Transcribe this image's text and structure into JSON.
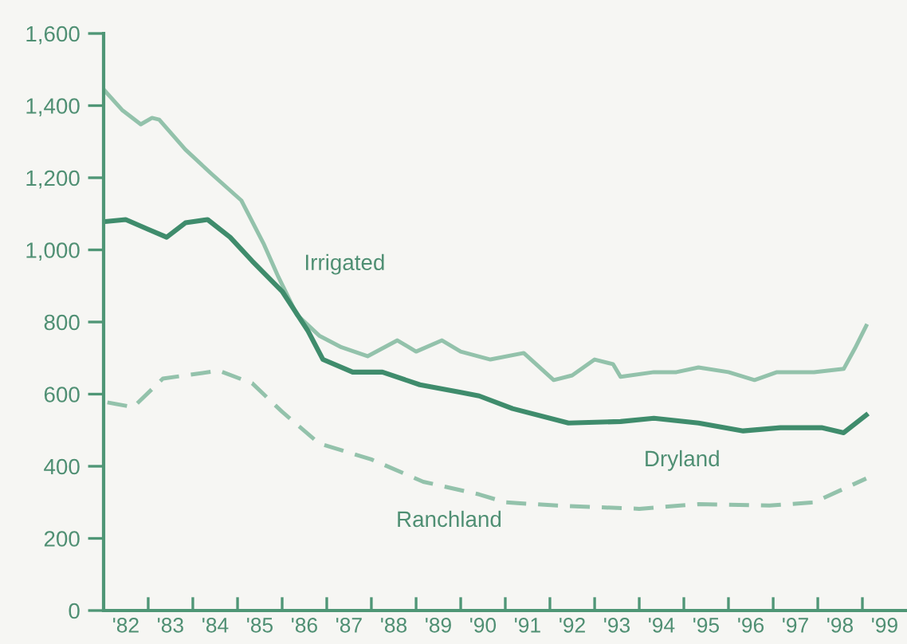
{
  "chart_data": {
    "type": "line",
    "xlim": [
      "1982-01-01",
      "2000-01-01"
    ],
    "ylim": [
      0,
      1600
    ],
    "yticks": [
      0,
      200,
      400,
      600,
      800,
      {
        "value": 1000,
        "label": "1,000"
      },
      {
        "value": 1200,
        "label": "1,200"
      },
      {
        "value": 1400,
        "label": "1,400"
      },
      {
        "value": 1600,
        "label": "1,600"
      }
    ],
    "xticks": [
      {
        "value": "1982-07-02",
        "label": "'82"
      },
      {
        "value": "1983-01-01",
        "label": null
      },
      {
        "value": "1983-07-02",
        "label": "'83"
      },
      {
        "value": "1984-01-01",
        "label": null
      },
      {
        "value": "1984-07-02",
        "label": "'84"
      },
      {
        "value": "1985-01-01",
        "label": null
      },
      {
        "value": "1985-07-02",
        "label": "'85"
      },
      {
        "value": "1986-01-01",
        "label": null
      },
      {
        "value": "1986-07-02",
        "label": "'86"
      },
      {
        "value": "1987-01-01",
        "label": null
      },
      {
        "value": "1987-07-02",
        "label": "'87"
      },
      {
        "value": "1988-01-01",
        "label": null
      },
      {
        "value": "1988-07-02",
        "label": "'88"
      },
      {
        "value": "1989-01-01",
        "label": null
      },
      {
        "value": "1989-07-02",
        "label": "'89"
      },
      {
        "value": "1990-01-01",
        "label": null
      },
      {
        "value": "1990-07-02",
        "label": "'90"
      },
      {
        "value": "1991-01-01",
        "label": null
      },
      {
        "value": "1991-07-02",
        "label": "'91"
      },
      {
        "value": "1992-01-01",
        "label": null
      },
      {
        "value": "1992-07-02",
        "label": "'92"
      },
      {
        "value": "1993-01-01",
        "label": null
      },
      {
        "value": "1993-07-02",
        "label": "'93"
      },
      {
        "value": "1994-01-01",
        "label": null
      },
      {
        "value": "1994-07-02",
        "label": "'94"
      },
      {
        "value": "1995-01-01",
        "label": null
      },
      {
        "value": "1995-07-02",
        "label": "'95"
      },
      {
        "value": "1996-01-01",
        "label": null
      },
      {
        "value": "1996-07-02",
        "label": "'96"
      },
      {
        "value": "1997-01-01",
        "label": null
      },
      {
        "value": "1997-07-02",
        "label": "'97"
      },
      {
        "value": "1998-01-01",
        "label": null
      },
      {
        "value": "1998-07-02",
        "label": "'98"
      },
      {
        "value": "1999-01-01",
        "label": null
      },
      {
        "value": "1999-07-02",
        "label": "'99"
      }
    ],
    "grid": false,
    "legend": false,
    "marker": "none",
    "series": [
      {
        "name": "Irrigated",
        "color": "#93c2ab",
        "line_style": "solid",
        "x": [
          "1982-01",
          "1982-06",
          "1982-11",
          "1983-02",
          "1983-04",
          "1983-11",
          "1984-06",
          "1985-02",
          "1985-08",
          "1985-12",
          "1986-05",
          "1986-11",
          "1987-05",
          "1987-12",
          "1988-08",
          "1989-01",
          "1989-08",
          "1990-01",
          "1990-09",
          "1991-06",
          "1992-02",
          "1992-07",
          "1993-01",
          "1993-06",
          "1993-08",
          "1994-05",
          "1994-11",
          "1995-05",
          "1996-01",
          "1996-08",
          "1997-02",
          "1997-12",
          "1998-08",
          "1998-11",
          "1999-02"
        ],
        "values": [
          1445,
          1388,
          1348,
          1366,
          1361,
          1278,
          1211,
          1137,
          1018,
          925,
          820,
          762,
          730,
          705,
          749,
          718,
          749,
          718,
          696,
          714,
          639,
          652,
          696,
          683,
          648,
          661,
          661,
          674,
          661,
          639,
          661,
          661,
          670,
          727,
          789
        ]
      },
      {
        "name": "Dryland",
        "color": "#3f8c6c",
        "line_style": "solid",
        "x": [
          "1982-02",
          "1982-07",
          "1983-01",
          "1983-06",
          "1983-11",
          "1984-05",
          "1984-11",
          "1985-05",
          "1986-01",
          "1986-08",
          "1986-12",
          "1987-08",
          "1988-04",
          "1989-02",
          "1990-01",
          "1990-06",
          "1991-03",
          "1992-06",
          "1993-08",
          "1994-05",
          "1995-05",
          "1996-05",
          "1997-03",
          "1998-02",
          "1998-08",
          "1999-02"
        ],
        "values": [
          1079,
          1084,
          1057,
          1035,
          1075,
          1084,
          1035,
          969,
          885,
          775,
          696,
          661,
          661,
          626,
          605,
          595,
          560,
          520,
          524,
          533,
          520,
          498,
          507,
          507,
          493,
          542
        ]
      },
      {
        "name": "Ranchland",
        "color": "#93c2ab",
        "line_style": "dashed",
        "x": [
          "1982-02",
          "1982-09",
          "1983-05",
          "1983-11",
          "1984-08",
          "1985-05",
          "1986-01",
          "1986-11",
          "1988-01",
          "1989-03",
          "1990-06",
          "1991-01",
          "1992-03",
          "1994-01",
          "1995-05",
          "1996-12",
          "1997-12",
          "1999-02"
        ],
        "values": [
          577,
          564,
          643,
          652,
          665,
          630,
          551,
          463,
          419,
          357,
          322,
          300,
          291,
          282,
          295,
          291,
          300,
          366
        ]
      }
    ]
  }
}
